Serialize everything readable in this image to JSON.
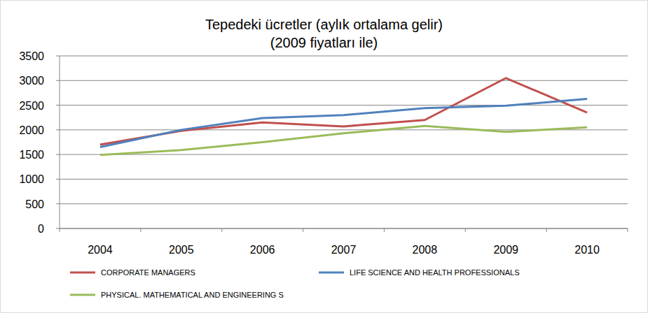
{
  "chart_data": {
    "type": "line",
    "title": "Tepedeki ücretler (aylık ortalama gelir)",
    "subtitle": "(2009 fiyatları ile)",
    "categories": [
      "2004",
      "2005",
      "2006",
      "2007",
      "2008",
      "2009",
      "2010"
    ],
    "series": [
      {
        "name": "CORPORATE MANAGERS",
        "color": "#c0504d",
        "values": [
          1700,
          1980,
          2150,
          2070,
          2200,
          3050,
          2350
        ]
      },
      {
        "name": "LIFE SCIENCE AND HEALTH PROFESSIONALS",
        "color": "#4f81bd",
        "values": [
          1650,
          2000,
          2240,
          2300,
          2440,
          2490,
          2630
        ]
      },
      {
        "name": "PHYSICAL. MATHEMATICAL AND ENGINEERING S",
        "color": "#9bbb59",
        "values": [
          1490,
          1590,
          1750,
          1930,
          2080,
          1960,
          2050
        ]
      }
    ],
    "ylim": [
      0,
      3500
    ],
    "yticks": [
      0,
      500,
      1000,
      1500,
      2000,
      2500,
      3000,
      3500
    ],
    "grid": true,
    "legend": "bottom"
  }
}
